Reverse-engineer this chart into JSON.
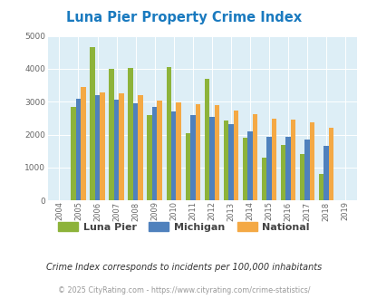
{
  "title": "Luna Pier Property Crime Index",
  "years": [
    2004,
    2005,
    2006,
    2007,
    2008,
    2009,
    2010,
    2011,
    2012,
    2013,
    2014,
    2015,
    2016,
    2017,
    2018,
    2019
  ],
  "luna_pier": [
    null,
    2850,
    4650,
    4000,
    4030,
    2580,
    4060,
    2050,
    3700,
    2430,
    1900,
    1310,
    1670,
    1400,
    790,
    null
  ],
  "michigan": [
    null,
    3080,
    3200,
    3060,
    2960,
    2840,
    2690,
    2600,
    2540,
    2330,
    2090,
    1920,
    1920,
    1850,
    1650,
    null
  ],
  "national": [
    null,
    3450,
    3290,
    3250,
    3210,
    3040,
    2980,
    2930,
    2890,
    2740,
    2610,
    2490,
    2460,
    2380,
    2200,
    null
  ],
  "luna_pier_color": "#8db33a",
  "michigan_color": "#4f81bd",
  "national_color": "#f4a945",
  "bg_color": "#ddeef6",
  "ylim": [
    0,
    5000
  ],
  "yticks": [
    0,
    1000,
    2000,
    3000,
    4000,
    5000
  ],
  "footer_note": "Crime Index corresponds to incidents per 100,000 inhabitants",
  "copyright": "© 2025 CityRating.com - https://www.cityrating.com/crime-statistics/",
  "legend_labels": [
    "Luna Pier",
    "Michigan",
    "National"
  ]
}
